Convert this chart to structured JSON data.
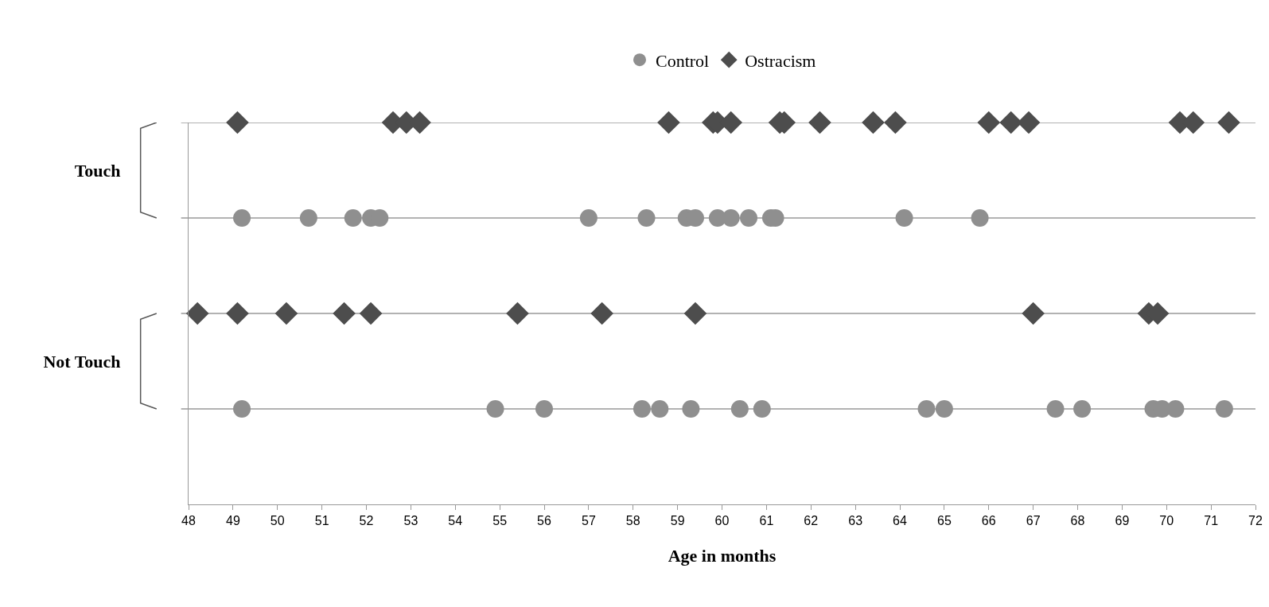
{
  "chart_data": {
    "type": "scatter",
    "orientation": "horizontal",
    "xlabel": "Age in months",
    "legend": "top",
    "grid": "y",
    "xlim": [
      48,
      72
    ],
    "xticks": [
      48,
      49,
      50,
      51,
      52,
      53,
      54,
      55,
      56,
      57,
      58,
      59,
      60,
      61,
      62,
      63,
      64,
      65,
      66,
      67,
      68,
      69,
      70,
      71,
      72
    ],
    "categories": [
      "Touch",
      "Not Touch"
    ],
    "series": [
      {
        "name": "Control",
        "color": "#8f8f8f",
        "marker": "circle",
        "x": [
          "Touch",
          "Touch",
          "Touch",
          "Touch",
          "Touch",
          "Touch",
          "Touch",
          "Touch",
          "Touch",
          "Touch",
          "Touch",
          "Touch",
          "Touch",
          "Touch",
          "Touch",
          "Touch",
          "Not Touch",
          "Not Touch",
          "Not Touch",
          "Not Touch",
          "Not Touch",
          "Not Touch",
          "Not Touch",
          "Not Touch",
          "Not Touch",
          "Not Touch",
          "Not Touch",
          "Not Touch",
          "Not Touch",
          "Not Touch",
          "Not Touch",
          "Not Touch"
        ],
        "values": [
          49.2,
          50.7,
          51.7,
          52.1,
          52.3,
          57.0,
          58.3,
          59.2,
          59.4,
          59.9,
          60.2,
          60.6,
          61.1,
          61.2,
          64.1,
          65.8,
          49.2,
          54.9,
          56.0,
          58.2,
          58.6,
          59.3,
          60.4,
          60.9,
          64.6,
          65.0,
          67.5,
          68.1,
          69.7,
          69.9,
          70.2,
          71.3
        ]
      },
      {
        "name": "Ostracism",
        "color": "#4d4d4d",
        "marker": "diamond",
        "x": [
          "Touch",
          "Touch",
          "Touch",
          "Touch",
          "Touch",
          "Touch",
          "Touch",
          "Touch",
          "Touch",
          "Touch",
          "Touch",
          "Touch",
          "Touch",
          "Touch",
          "Touch",
          "Touch",
          "Touch",
          "Touch",
          "Touch",
          "Not Touch",
          "Not Touch",
          "Not Touch",
          "Not Touch",
          "Not Touch",
          "Not Touch",
          "Not Touch",
          "Not Touch",
          "Not Touch",
          "Not Touch",
          "Not Touch"
        ],
        "values": [
          49.1,
          52.6,
          52.9,
          53.2,
          58.8,
          59.8,
          59.9,
          60.2,
          61.3,
          61.4,
          62.2,
          63.4,
          63.9,
          66.0,
          66.5,
          66.9,
          70.3,
          70.6,
          71.4,
          48.2,
          49.1,
          50.2,
          51.5,
          52.1,
          55.4,
          57.3,
          59.4,
          67.0,
          69.6,
          69.8
        ]
      }
    ]
  }
}
